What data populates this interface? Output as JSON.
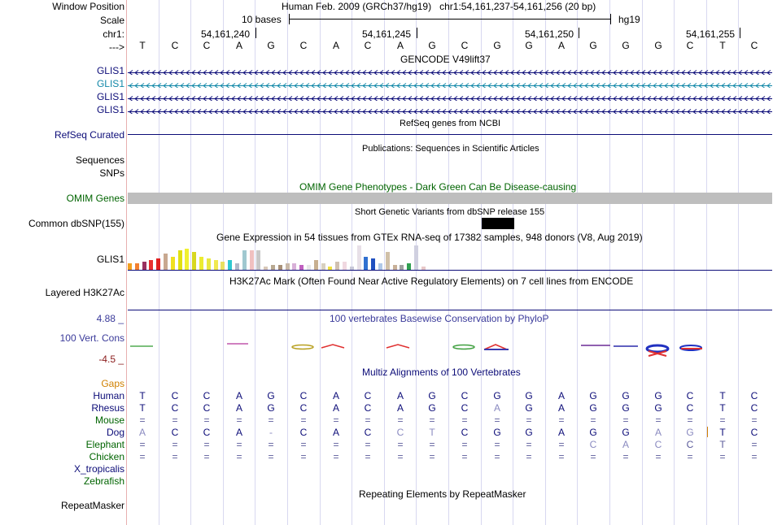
{
  "header": {
    "window_position_label": "Window Position",
    "scale_label": "Scale",
    "chrom_label": "chr1:",
    "strand_label": "--->",
    "assembly": "Human Feb. 2009 (GRCh37/hg19)",
    "position": "chr1:54,161,237-54,161,256 (20 bp)",
    "scale_text": "10 bases",
    "db": "hg19",
    "coords": [
      "54,161,240",
      "54,161,245",
      "54,161,250",
      "54,161,255"
    ],
    "sequence": [
      "T",
      "C",
      "C",
      "A",
      "G",
      "C",
      "A",
      "C",
      "A",
      "G",
      "C",
      "G",
      "G",
      "A",
      "G",
      "G",
      "G",
      "C",
      "T",
      "C"
    ]
  },
  "tracks": {
    "gencode": {
      "title": "GENCODE V49lift37",
      "rows": [
        {
          "label": "GLIS1",
          "color": "#0c0c78"
        },
        {
          "label": "GLIS1",
          "color": "#1288a8"
        },
        {
          "label": "GLIS1",
          "color": "#0c0c78"
        },
        {
          "label": "GLIS1",
          "color": "#0c0c78"
        }
      ]
    },
    "refseq": {
      "title": "RefSeq genes from NCBI",
      "label": "RefSeq Curated",
      "color": "#0c0c78"
    },
    "publications": {
      "title": "Publications: Sequences in Scientific Articles",
      "label_line1": "Sequences",
      "label_line2": "SNPs"
    },
    "omim": {
      "title": "OMIM Gene Phenotypes - Dark Green Can Be Disease-causing",
      "label": "OMIM Genes",
      "color": "#006400"
    },
    "dbsnp": {
      "title": "Short Genetic Variants from dbSNP release 155",
      "label": "Common dbSNP(155)"
    },
    "gtex": {
      "title": "Gene Expression in 54 tissues from GTEx RNA-seq of 17382 samples, 948 donors (V8, Aug 2019)",
      "label": "GLIS1"
    },
    "h3k27ac": {
      "title": "H3K27Ac Mark (Often Found Near Active Regulatory Elements) on 7 cell lines from ENCODE",
      "label": "Layered H3K27Ac"
    },
    "cons": {
      "title": "100 vertebrates Basewise Conservation by PhyloP",
      "label": "100 Vert. Cons",
      "max": "4.88 _",
      "min": "-4.5 _",
      "max_color": "#3a3a9a",
      "min_color": "#8a1a1a"
    },
    "multiz": {
      "title": "Multiz Alignments of 100 Vertebrates",
      "gaps_label": "Gaps",
      "species": [
        {
          "name": "Human",
          "color": "#0c0c78",
          "bases": [
            "T",
            "C",
            "C",
            "A",
            "G",
            "C",
            "A",
            "C",
            "A",
            "G",
            "C",
            "G",
            "G",
            "A",
            "G",
            "G",
            "G",
            "C",
            "T",
            "C"
          ],
          "dim": []
        },
        {
          "name": "Rhesus",
          "color": "#0c0c78",
          "bases": [
            "T",
            "C",
            "C",
            "A",
            "G",
            "C",
            "A",
            "C",
            "A",
            "G",
            "C",
            "A",
            "G",
            "A",
            "G",
            "G",
            "G",
            "C",
            "T",
            "C"
          ],
          "dim": [
            11
          ]
        },
        {
          "name": "Mouse",
          "color": "#006400",
          "bases": [
            "=",
            "=",
            "=",
            "=",
            "=",
            "=",
            "=",
            "=",
            "=",
            "=",
            "=",
            "=",
            "=",
            "=",
            "=",
            "=",
            "=",
            "=",
            "=",
            "="
          ],
          "dim": []
        },
        {
          "name": "Dog",
          "color": "#0c0c78",
          "bases": [
            "A",
            "C",
            "C",
            "A",
            "-",
            "C",
            "A",
            "C",
            "C",
            "T",
            "C",
            "G",
            "G",
            "A",
            "G",
            "G",
            "A",
            "G",
            "T",
            "C"
          ],
          "dim": [
            0,
            4,
            8,
            9,
            16,
            17
          ]
        },
        {
          "name": "Elephant",
          "color": "#006400",
          "bases": [
            "=",
            "=",
            "=",
            "=",
            "=",
            "=",
            "=",
            "=",
            "=",
            "=",
            "=",
            "=",
            "=",
            "=",
            "C",
            "A",
            "C",
            "C",
            "T",
            "="
          ],
          "dim": [
            14,
            15,
            16
          ]
        },
        {
          "name": "Chicken",
          "color": "#006400",
          "bases": [
            "=",
            "=",
            "=",
            "=",
            "=",
            "=",
            "=",
            "=",
            "=",
            "=",
            "=",
            "=",
            "=",
            "=",
            "=",
            "=",
            "=",
            "=",
            "=",
            "="
          ],
          "dim": []
        },
        {
          "name": "X_tropicalis",
          "color": "#0c0c78",
          "bases": [],
          "dim": []
        },
        {
          "name": "Zebrafish",
          "color": "#006400",
          "bases": [],
          "dim": []
        }
      ]
    },
    "repeatmasker": {
      "title": "Repeating Elements by RepeatMasker",
      "label": "RepeatMasker"
    }
  }
}
